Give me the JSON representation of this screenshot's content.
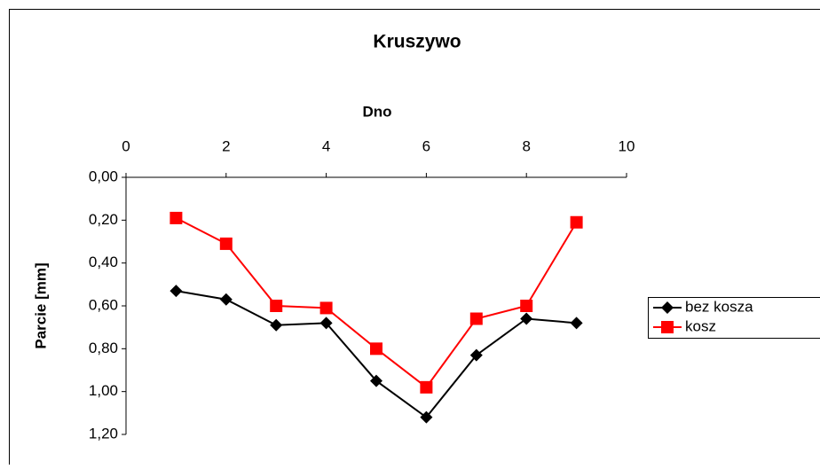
{
  "chart_data": {
    "type": "line",
    "title": "Kruszywo",
    "x_label": "Dno",
    "y_label": "Parcie [mm]",
    "x": [
      1,
      2,
      3,
      4,
      5,
      6,
      7,
      8,
      9
    ],
    "series": [
      {
        "name": "bez kosza",
        "color": "#000000",
        "marker": "diamond",
        "values": [
          0.53,
          0.57,
          0.69,
          0.68,
          0.95,
          1.12,
          0.83,
          0.66,
          0.68
        ]
      },
      {
        "name": "kosz",
        "color": "#ff0000",
        "marker": "square",
        "values": [
          0.19,
          0.31,
          0.6,
          0.61,
          0.8,
          0.98,
          0.66,
          0.6,
          0.21
        ]
      }
    ],
    "xlim": [
      0,
      10
    ],
    "xticks": [
      0,
      2,
      4,
      6,
      8,
      10
    ],
    "ylim": [
      0,
      1.2
    ],
    "y_inverted": true,
    "x_axis_position": "top",
    "yticks": [
      {
        "value": 0,
        "label": "0,00"
      },
      {
        "value": 0.2,
        "label": "0,20"
      },
      {
        "value": 0.4,
        "label": "0,40"
      },
      {
        "value": 0.6,
        "label": "0,60"
      },
      {
        "value": 0.8,
        "label": "0,80"
      },
      {
        "value": 1.0,
        "label": "1,00"
      },
      {
        "value": 1.2,
        "label": "1,20"
      }
    ],
    "legend": "right"
  }
}
